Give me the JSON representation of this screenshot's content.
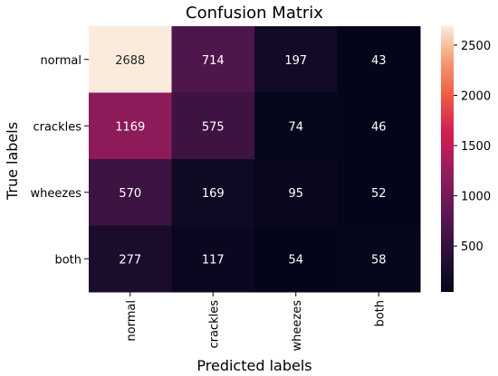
{
  "chart_data": {
    "type": "heatmap",
    "title": "Confusion Matrix",
    "xlabel": "Predicted labels",
    "ylabel": "True labels",
    "x_categories": [
      "normal",
      "crackles",
      "wheezes",
      "both"
    ],
    "y_categories": [
      "normal",
      "crackles",
      "wheezes",
      "both"
    ],
    "values": [
      [
        2688,
        714,
        197,
        43
      ],
      [
        1169,
        575,
        74,
        46
      ],
      [
        570,
        169,
        95,
        52
      ],
      [
        277,
        117,
        54,
        58
      ]
    ],
    "colorbar": {
      "min": 43,
      "max": 2688,
      "ticks": [
        500,
        1000,
        1500,
        2000,
        2500
      ]
    },
    "colormap": "rocket"
  }
}
